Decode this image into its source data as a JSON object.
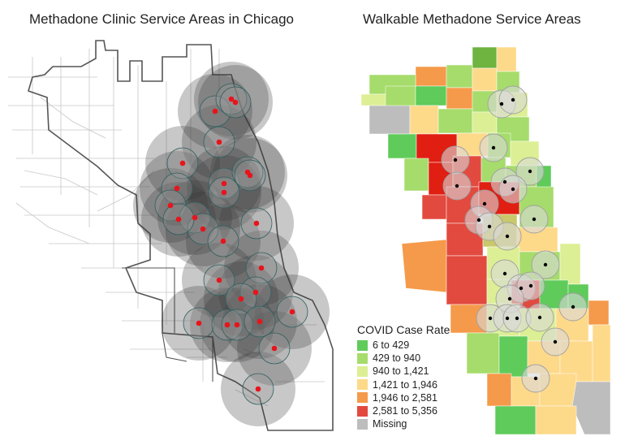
{
  "left_map": {
    "title": "Methadone Clinic Service Areas in Chicago",
    "clinic_marker_color": "#e8141c",
    "buffer_color": "#3a3a3a"
  },
  "right_map": {
    "title": "Walkable Methadone Service Areas",
    "clinic_marker_color": "#000000",
    "legend": {
      "title": "COVID Case Rate",
      "items": [
        {
          "label": "6 to 429",
          "color": "#5fcb5a"
        },
        {
          "label": "429 to 940",
          "color": "#a6dc6b"
        },
        {
          "label": "940 to 1,421",
          "color": "#dcef94"
        },
        {
          "label": "1,421 to 1,946",
          "color": "#fdd98a"
        },
        {
          "label": "1,946 to 2,581",
          "color": "#f59a4a"
        },
        {
          "label": "2,581 to 5,356",
          "color": "#e24a3f"
        },
        {
          "label": "Missing",
          "color": "#bdbdbd"
        }
      ]
    }
  }
}
